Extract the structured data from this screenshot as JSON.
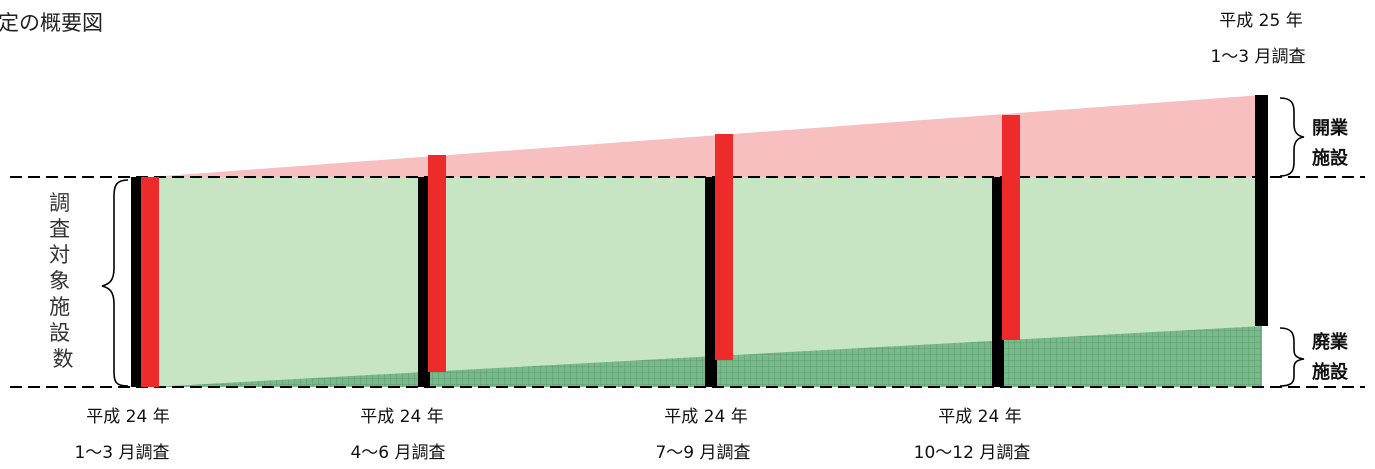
{
  "diagram": {
    "title": "定の概要図",
    "left_bracket_label": "調査対象施設数",
    "opening_label": [
      "開業",
      "施設"
    ],
    "closing_label": [
      "廃業",
      "施設"
    ],
    "periods": [
      {
        "year": "平成 24 年",
        "months": "1～3 月調査"
      },
      {
        "year": "平成 24 年",
        "months": "4～6 月調査"
      },
      {
        "year": "平成 24 年",
        "months": "7～9 月調査"
      },
      {
        "year": "平成 24 年",
        "months": "10～12 月調査"
      },
      {
        "year": "平成 25 年",
        "months": "1～3 月調査"
      }
    ],
    "colors": {
      "opened_area": "#f7bfbf",
      "surviving_area": "#c7e4c3",
      "closed_area": "#79b98a",
      "closed_hatch": "#5b9d6c",
      "survey_bar": "#000000",
      "new_bar": "#ee2b2b"
    }
  }
}
